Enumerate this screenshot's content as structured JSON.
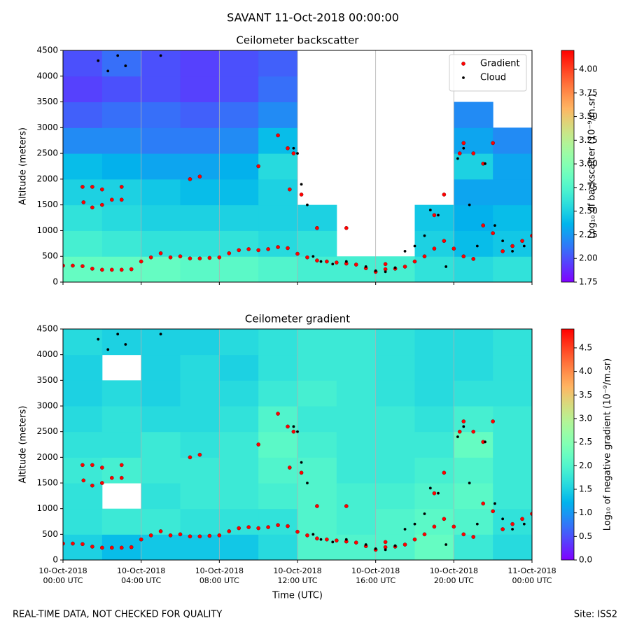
{
  "title": "SAVANT 11-Oct-2018 00:00:00",
  "footer_left": "REAL-TIME DATA, NOT CHECKED FOR QUALITY",
  "footer_right": "Site: ISS2",
  "chart_data": [
    {
      "type": "heatmap",
      "title": "Ceilometer backscatter",
      "ylabel": "Altitude (meters)",
      "xlim": [
        0,
        24
      ],
      "xticks": [
        0,
        4,
        8,
        12,
        16,
        20,
        24
      ],
      "xtick_labels": false,
      "ylim": [
        0,
        4500
      ],
      "yticks": [
        0,
        500,
        1000,
        1500,
        2000,
        2500,
        3000,
        3500,
        4000,
        4500
      ],
      "grid": "x",
      "x": [
        1,
        3,
        5,
        7,
        9,
        11,
        13,
        15,
        17,
        19,
        21,
        23
      ],
      "y": [
        250,
        750,
        1250,
        1750,
        2250,
        2750,
        3250,
        3750,
        4250
      ],
      "z": [
        [
          2.85,
          2.85,
          2.85,
          2.8,
          2.8,
          2.75,
          2.7,
          2.7,
          2.7,
          2.6,
          2.55,
          2.6
        ],
        [
          2.7,
          2.65,
          2.6,
          2.6,
          2.6,
          2.55,
          2.6,
          null,
          null,
          2.5,
          2.4,
          2.45
        ],
        [
          2.6,
          2.55,
          2.5,
          2.5,
          2.5,
          2.5,
          2.5,
          null,
          null,
          2.45,
          2.35,
          2.4
        ],
        [
          2.5,
          2.5,
          2.45,
          2.4,
          2.4,
          2.5,
          null,
          null,
          null,
          null,
          2.3,
          2.3
        ],
        [
          2.4,
          2.35,
          2.3,
          2.3,
          2.35,
          2.55,
          null,
          null,
          null,
          null,
          2.5,
          2.3
        ],
        [
          2.2,
          2.2,
          2.15,
          2.15,
          2.2,
          2.4,
          null,
          null,
          null,
          null,
          2.3,
          2.2
        ],
        [
          2.05,
          2.1,
          2.1,
          2.05,
          2.1,
          2.2,
          null,
          null,
          null,
          null,
          2.2,
          null
        ],
        [
          1.95,
          2.0,
          2.0,
          1.95,
          2.0,
          2.1,
          null,
          null,
          null,
          null,
          null,
          null
        ],
        [
          2.0,
          2.1,
          2.0,
          1.95,
          2.0,
          2.05,
          null,
          null,
          null,
          null,
          null,
          null
        ]
      ],
      "colorbar": {
        "label": "Log₁₀ of backscatter (10⁻⁹/m.sr)",
        "colormap": "rainbow",
        "lim": [
          1.75,
          4.2
        ],
        "ticks": [
          {
            "value": 1.75,
            "label": "1.75"
          },
          {
            "value": 2,
            "label": "2.00"
          },
          {
            "value": 2.25,
            "label": "2.25"
          },
          {
            "value": 2.5,
            "label": "2.50"
          },
          {
            "value": 2.75,
            "label": "2.75"
          },
          {
            "value": 3,
            "label": "3.00"
          },
          {
            "value": 3.25,
            "label": "3.25"
          },
          {
            "value": 3.5,
            "label": "3.50"
          },
          {
            "value": 3.75,
            "label": "3.75"
          },
          {
            "value": 4,
            "label": "4.00"
          }
        ]
      },
      "legend": "upper right",
      "series": [
        {
          "name": "Gradient",
          "color": "#ff0000",
          "x": [
            0,
            0.5,
            1,
            1.5,
            2,
            2.5,
            3,
            3.5,
            4,
            4.5,
            5,
            5.5,
            6,
            6.5,
            7,
            7.5,
            8,
            8.5,
            9,
            9.5,
            10,
            10.5,
            11,
            11.5,
            12,
            12.5,
            13,
            13.5,
            14,
            14.5,
            15,
            15.5,
            16,
            16.5,
            17,
            17.5,
            18,
            18.5,
            19,
            19.5,
            20,
            20.5,
            21,
            21.5,
            22,
            22.5,
            23,
            23.5,
            24,
            1,
            1.5,
            2,
            3,
            1.05,
            1.5,
            2,
            2.5,
            3,
            6.5,
            7,
            10,
            11.5,
            11,
            11.8,
            11.6,
            12.2,
            13,
            14.5,
            16.5,
            19,
            19.5,
            20.3,
            20.5,
            21,
            21.5,
            22
          ],
          "values": [
            320,
            320,
            310,
            260,
            240,
            240,
            240,
            250,
            400,
            480,
            560,
            480,
            500,
            460,
            460,
            470,
            480,
            560,
            620,
            640,
            620,
            640,
            680,
            660,
            550,
            480,
            420,
            400,
            380,
            360,
            340,
            270,
            200,
            250,
            260,
            300,
            400,
            500,
            650,
            800,
            650,
            500,
            450,
            1100,
            950,
            600,
            700,
            800,
            900,
            1850,
            1850,
            1800,
            1850,
            1550,
            1450,
            1500,
            1600,
            1600,
            2000,
            2050,
            2250,
            2600,
            2850,
            2500,
            1800,
            1700,
            1050,
            1050,
            350,
            1300,
            1700,
            2500,
            2700,
            2500,
            2300,
            2700
          ]
        },
        {
          "name": "Cloud",
          "color": "#000000",
          "x": [
            1.8,
            2.3,
            2.8,
            3.2,
            5,
            12,
            11.8,
            12.2,
            12.5,
            12.8,
            13.2,
            13.8,
            14.5,
            15.5,
            16,
            16.5,
            17,
            17.5,
            18,
            18.5,
            18.8,
            19.2,
            19.6,
            20.2,
            20.5,
            20.8,
            21.2,
            21.6,
            22.1,
            22.5,
            23,
            23.6
          ],
          "values": [
            4300,
            4100,
            4400,
            4200,
            4400,
            2500,
            2600,
            1900,
            1500,
            500,
            400,
            350,
            400,
            300,
            220,
            200,
            280,
            600,
            700,
            900,
            1400,
            1300,
            300,
            2400,
            2600,
            1500,
            700,
            2300,
            1100,
            800,
            600,
            700
          ]
        }
      ]
    },
    {
      "type": "heatmap",
      "title": "Ceilometer gradient",
      "ylabel": "Altitude (meters)",
      "xlabel": "Time (UTC)",
      "xlim": [
        0,
        24
      ],
      "xticks": [
        {
          "value": 0,
          "label": "10-Oct-2018\n00:00 UTC"
        },
        {
          "value": 4,
          "label": "10-Oct-2018\n04:00 UTC"
        },
        {
          "value": 8,
          "label": "10-Oct-2018\n08:00 UTC"
        },
        {
          "value": 12,
          "label": "10-Oct-2018\n12:00 UTC"
        },
        {
          "value": 16,
          "label": "10-Oct-2018\n16:00 UTC"
        },
        {
          "value": 20,
          "label": "10-Oct-2018\n20:00 UTC"
        },
        {
          "value": 24,
          "label": "11-Oct-2018\n00:00 UTC"
        }
      ],
      "ylim": [
        0,
        4500
      ],
      "yticks": [
        0,
        500,
        1000,
        1500,
        2000,
        2500,
        3000,
        3500,
        4000,
        4500
      ],
      "grid": "x",
      "x": [
        1,
        3,
        5,
        7,
        9,
        11,
        13,
        15,
        17,
        19,
        21,
        23
      ],
      "y": [
        250,
        750,
        1250,
        1750,
        2250,
        2750,
        3250,
        3750,
        4250
      ],
      "z": [
        [
          1.5,
          1.3,
          1.4,
          1.4,
          1.4,
          1.6,
          2.0,
          2.0,
          2.0,
          2.2,
          1.8,
          1.6
        ],
        [
          1.7,
          1.8,
          1.8,
          1.7,
          1.7,
          1.7,
          2.0,
          1.9,
          2.0,
          2.1,
          2.0,
          1.7
        ],
        [
          1.7,
          null,
          1.7,
          1.8,
          1.8,
          1.9,
          2.0,
          1.9,
          1.9,
          2.0,
          2.1,
          1.8
        ],
        [
          1.8,
          1.9,
          1.8,
          1.8,
          1.8,
          2.0,
          2.0,
          1.8,
          1.8,
          1.9,
          2.0,
          1.8
        ],
        [
          1.7,
          1.7,
          1.8,
          1.7,
          1.8,
          2.1,
          1.9,
          1.8,
          1.8,
          1.8,
          2.2,
          1.8
        ],
        [
          1.6,
          1.7,
          1.6,
          1.6,
          1.7,
          2.0,
          1.8,
          1.8,
          1.8,
          1.7,
          1.9,
          1.8
        ],
        [
          1.5,
          1.6,
          1.5,
          1.6,
          1.6,
          1.8,
          1.9,
          1.8,
          1.7,
          1.6,
          1.7,
          1.7
        ],
        [
          1.5,
          null,
          1.5,
          1.6,
          1.5,
          1.7,
          1.8,
          1.8,
          1.7,
          1.6,
          1.6,
          1.7
        ],
        [
          1.6,
          1.5,
          1.5,
          1.5,
          1.6,
          1.7,
          1.8,
          1.8,
          1.7,
          1.6,
          1.6,
          1.7
        ]
      ],
      "colorbar": {
        "label": "Log₁₀ of negative gradient (10⁻⁹/m.sr)",
        "colormap": "rainbow",
        "lim": [
          0,
          4.9
        ],
        "ticks": [
          {
            "value": 0,
            "label": "0.0"
          },
          {
            "value": 0.5,
            "label": "0.5"
          },
          {
            "value": 1,
            "label": "1.0"
          },
          {
            "value": 1.5,
            "label": "1.5"
          },
          {
            "value": 2,
            "label": "2.0"
          },
          {
            "value": 2.5,
            "label": "2.5"
          },
          {
            "value": 3,
            "label": "3.0"
          },
          {
            "value": 3.5,
            "label": "3.5"
          },
          {
            "value": 4,
            "label": "4.0"
          },
          {
            "value": 4.5,
            "label": "4.5"
          }
        ]
      },
      "series": [
        {
          "color": "#ff0000",
          "x": [
            0,
            0.5,
            1,
            1.5,
            2,
            2.5,
            3,
            3.5,
            4,
            4.5,
            5,
            5.5,
            6,
            6.5,
            7,
            7.5,
            8,
            8.5,
            9,
            9.5,
            10,
            10.5,
            11,
            11.5,
            12,
            12.5,
            13,
            13.5,
            14,
            14.5,
            15,
            15.5,
            16,
            16.5,
            17,
            17.5,
            18,
            18.5,
            19,
            19.5,
            20,
            20.5,
            21,
            21.5,
            22,
            22.5,
            23,
            23.5,
            24,
            1,
            1.5,
            2,
            3,
            1.05,
            1.5,
            2,
            2.5,
            3,
            6.5,
            7,
            10,
            11.5,
            11,
            11.8,
            11.6,
            12.2,
            13,
            14.5,
            16.5,
            19,
            19.5,
            20.3,
            20.5,
            21,
            21.5,
            22
          ],
          "values": [
            320,
            320,
            310,
            260,
            240,
            240,
            240,
            250,
            400,
            480,
            560,
            480,
            500,
            460,
            460,
            470,
            480,
            560,
            620,
            640,
            620,
            640,
            680,
            660,
            550,
            480,
            420,
            400,
            380,
            360,
            340,
            270,
            200,
            250,
            260,
            300,
            400,
            500,
            650,
            800,
            650,
            500,
            450,
            1100,
            950,
            600,
            700,
            800,
            900,
            1850,
            1850,
            1800,
            1850,
            1550,
            1450,
            1500,
            1600,
            1600,
            2000,
            2050,
            2250,
            2600,
            2850,
            2500,
            1800,
            1700,
            1050,
            1050,
            350,
            1300,
            1700,
            2500,
            2700,
            2500,
            2300,
            2700
          ]
        },
        {
          "color": "#000000",
          "x": [
            1.8,
            2.3,
            2.8,
            3.2,
            5,
            12,
            11.8,
            12.2,
            12.5,
            12.8,
            13.2,
            13.8,
            14.5,
            15.5,
            16,
            16.5,
            17,
            17.5,
            18,
            18.5,
            18.8,
            19.2,
            19.6,
            20.2,
            20.5,
            20.8,
            21.2,
            21.6,
            22.1,
            22.5,
            23,
            23.6
          ],
          "values": [
            4300,
            4100,
            4400,
            4200,
            4400,
            2500,
            2600,
            1900,
            1500,
            500,
            400,
            350,
            400,
            300,
            220,
            200,
            280,
            600,
            700,
            900,
            1400,
            1300,
            300,
            2400,
            2600,
            1500,
            700,
            2300,
            1100,
            800,
            600,
            700
          ]
        }
      ]
    }
  ]
}
